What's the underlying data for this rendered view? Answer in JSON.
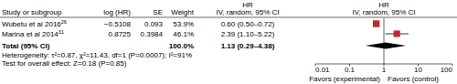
{
  "chart_data": {
    "type": "forest",
    "columns": [
      "Study or subgroup",
      "log (HR)",
      "SE",
      "Weight"
    ],
    "hr_header": [
      "HR",
      "IV, random, 95% CI"
    ],
    "studies": [
      {
        "name": "Wubetu et al 2016",
        "ref": "26",
        "log_hr": -0.5108,
        "log_hr_label": "−0.5108",
        "se": 0.093,
        "weight": 53.9,
        "weight_label": "53.9%",
        "hr": 0.6,
        "ci_low": 0.5,
        "ci_high": 0.72,
        "hr_label": "0.60 (0.50–0.72)"
      },
      {
        "name": "Marina et al 2014",
        "ref": "31",
        "log_hr": 0.8725,
        "log_hr_label": "0.8725",
        "se": 0.3984,
        "weight": 46.1,
        "weight_label": "46.1%",
        "hr": 2.39,
        "ci_low": 1.1,
        "ci_high": 5.22,
        "hr_label": "2.39 (1.10–5.22)"
      }
    ],
    "total": {
      "name": "Total (95% CI)",
      "weight": 100.0,
      "weight_label": "100.0%",
      "hr": 1.13,
      "ci_low": 0.29,
      "ci_high": 4.38,
      "hr_label": "1.13 (0.29–4.38)"
    },
    "heterogeneity": "Heterogeneity: τ²=0.87, χ²=11.43, df=1 (P=0.0007); I²=91%",
    "overall_effect": "Test for overall effect: Z=0.18 (P=0.85)",
    "favors_left": "Favors (experimental)",
    "favors_right": "Favors (control)",
    "color": "#c0282d",
    "log": "x",
    "xlim": [
      0.01,
      100
    ],
    "xticks": [
      0.01,
      0.1,
      1,
      10,
      100
    ]
  }
}
